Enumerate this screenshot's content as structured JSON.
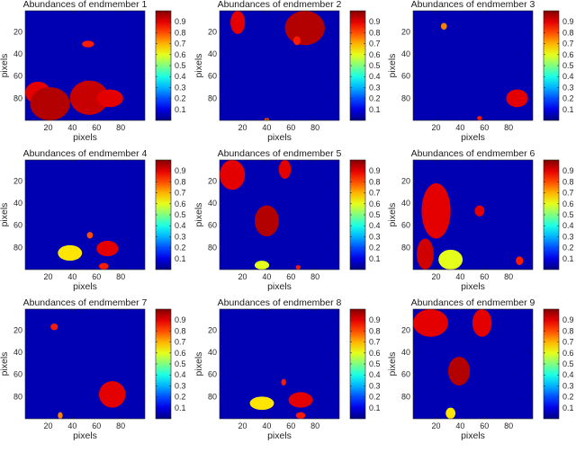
{
  "figure": {
    "rows": 3,
    "cols": 3
  },
  "chart_data": [
    {
      "type": "heatmap",
      "title": "Abundances of endmember 1",
      "xlabel": "pixels",
      "ylabel": "pixels",
      "xlim": [
        1,
        100
      ],
      "ylim": [
        1,
        100
      ],
      "xticks": [
        20,
        40,
        60,
        80
      ],
      "yticks": [
        20,
        40,
        60,
        80
      ],
      "xtick_labels": [
        "20",
        "40",
        "60",
        "80"
      ],
      "ytick_labels": [
        "20",
        "40",
        "60",
        "80"
      ],
      "colorbar": {
        "colormap": "jet",
        "ticks": [
          0.1,
          0.2,
          0.3,
          0.4,
          0.5,
          0.6,
          0.7,
          0.8,
          0.9
        ],
        "tick_labels": [
          "0.1",
          "0.2",
          "0.3",
          "0.4",
          "0.5",
          "0.6",
          "0.7",
          "0.8",
          "0.9"
        ]
      },
      "background_value": 0.05,
      "regions": [
        {
          "x": [
            1,
            22
          ],
          "y": [
            65,
            85
          ],
          "value": 0.9
        },
        {
          "x": [
            5,
            38
          ],
          "y": [
            70,
            100
          ],
          "value": 0.95
        },
        {
          "x": [
            38,
            70
          ],
          "y": [
            64,
            95
          ],
          "value": 0.93
        },
        {
          "x": [
            60,
            82
          ],
          "y": [
            72,
            88
          ],
          "value": 0.9
        },
        {
          "x": [
            48,
            58
          ],
          "y": [
            28,
            34
          ],
          "value": 0.85
        }
      ]
    },
    {
      "type": "heatmap",
      "title": "Abundances of endmember 2",
      "xlabel": "pixels",
      "ylabel": "pixels",
      "xlim": [
        1,
        100
      ],
      "ylim": [
        1,
        100
      ],
      "xticks": [
        20,
        40,
        60,
        80
      ],
      "yticks": [
        20,
        40,
        60,
        80
      ],
      "xtick_labels": [
        "20",
        "40",
        "60",
        "80"
      ],
      "ytick_labels": [
        "20",
        "40",
        "60",
        "80"
      ],
      "colorbar": {
        "colormap": "jet",
        "ticks": [
          0.1,
          0.2,
          0.3,
          0.4,
          0.5,
          0.6,
          0.7,
          0.8,
          0.9
        ],
        "tick_labels": [
          "0.1",
          "0.2",
          "0.3",
          "0.4",
          "0.5",
          "0.6",
          "0.7",
          "0.8",
          "0.9"
        ]
      },
      "background_value": 0.05,
      "regions": [
        {
          "x": [
            55,
            88
          ],
          "y": [
            1,
            32
          ],
          "value": 0.95
        },
        {
          "x": [
            10,
            22
          ],
          "y": [
            1,
            22
          ],
          "value": 0.9
        },
        {
          "x": [
            62,
            68
          ],
          "y": [
            24,
            32
          ],
          "value": 0.85
        },
        {
          "x": [
            38,
            42
          ],
          "y": [
            98,
            100
          ],
          "value": 0.8
        }
      ]
    },
    {
      "type": "heatmap",
      "title": "Abundances of endmember 3",
      "xlabel": "pixels",
      "ylabel": "pixels",
      "xlim": [
        1,
        100
      ],
      "ylim": [
        1,
        100
      ],
      "xticks": [
        20,
        40,
        60,
        80
      ],
      "yticks": [
        20,
        40,
        60,
        80
      ],
      "xtick_labels": [
        "20",
        "40",
        "60",
        "80"
      ],
      "ytick_labels": [
        "20",
        "40",
        "60",
        "80"
      ],
      "colorbar": {
        "colormap": "jet",
        "ticks": [
          0.1,
          0.2,
          0.3,
          0.4,
          0.5,
          0.6,
          0.7,
          0.8,
          0.9
        ],
        "tick_labels": [
          "0.1",
          "0.2",
          "0.3",
          "0.4",
          "0.5",
          "0.6",
          "0.7",
          "0.8",
          "0.9"
        ]
      },
      "background_value": 0.05,
      "regions": [
        {
          "x": [
            78,
            96
          ],
          "y": [
            72,
            88
          ],
          "value": 0.9
        },
        {
          "x": [
            24,
            29
          ],
          "y": [
            12,
            18
          ],
          "value": 0.75
        },
        {
          "x": [
            54,
            58
          ],
          "y": [
            96,
            100
          ],
          "value": 0.85
        }
      ]
    },
    {
      "type": "heatmap",
      "title": "Abundances of endmember 4",
      "xlabel": "pixels",
      "ylabel": "pixels",
      "xlim": [
        1,
        100
      ],
      "ylim": [
        1,
        100
      ],
      "xticks": [
        20,
        40,
        60,
        80
      ],
      "yticks": [
        20,
        40,
        60,
        80
      ],
      "xtick_labels": [
        "20",
        "40",
        "60",
        "80"
      ],
      "ytick_labels": [
        "20",
        "40",
        "60",
        "80"
      ],
      "colorbar": {
        "colormap": "jet",
        "ticks": [
          0.1,
          0.2,
          0.3,
          0.4,
          0.5,
          0.6,
          0.7,
          0.8,
          0.9
        ],
        "tick_labels": [
          "0.1",
          "0.2",
          "0.3",
          "0.4",
          "0.5",
          "0.6",
          "0.7",
          "0.8",
          "0.9"
        ]
      },
      "background_value": 0.05,
      "regions": [
        {
          "x": [
            28,
            48
          ],
          "y": [
            78,
            92
          ],
          "value": 0.65
        },
        {
          "x": [
            60,
            78
          ],
          "y": [
            74,
            88
          ],
          "value": 0.9
        },
        {
          "x": [
            52,
            57
          ],
          "y": [
            66,
            72
          ],
          "value": 0.8
        },
        {
          "x": [
            62,
            70
          ],
          "y": [
            94,
            100
          ],
          "value": 0.85
        }
      ]
    },
    {
      "type": "heatmap",
      "title": "Abundances of endmember 5",
      "xlabel": "pixels",
      "ylabel": "pixels",
      "xlim": [
        1,
        100
      ],
      "ylim": [
        1,
        100
      ],
      "xticks": [
        20,
        40,
        60,
        80
      ],
      "yticks": [
        20,
        40,
        60,
        80
      ],
      "xtick_labels": [
        "20",
        "40",
        "60",
        "80"
      ],
      "ytick_labels": [
        "20",
        "40",
        "60",
        "80"
      ],
      "colorbar": {
        "colormap": "jet",
        "ticks": [
          0.1,
          0.2,
          0.3,
          0.4,
          0.5,
          0.6,
          0.7,
          0.8,
          0.9
        ],
        "tick_labels": [
          "0.1",
          "0.2",
          "0.3",
          "0.4",
          "0.5",
          "0.6",
          "0.7",
          "0.8",
          "0.9"
        ]
      },
      "background_value": 0.05,
      "regions": [
        {
          "x": [
            1,
            22
          ],
          "y": [
            1,
            28
          ],
          "value": 0.9
        },
        {
          "x": [
            50,
            60
          ],
          "y": [
            1,
            18
          ],
          "value": 0.9
        },
        {
          "x": [
            30,
            50
          ],
          "y": [
            42,
            70
          ],
          "value": 0.95
        },
        {
          "x": [
            30,
            42
          ],
          "y": [
            92,
            100
          ],
          "value": 0.6
        },
        {
          "x": [
            64,
            68
          ],
          "y": [
            96,
            100
          ],
          "value": 0.85
        }
      ]
    },
    {
      "type": "heatmap",
      "title": "Abundances of endmember 6",
      "xlabel": "pixels",
      "ylabel": "pixels",
      "xlim": [
        1,
        100
      ],
      "ylim": [
        1,
        100
      ],
      "xticks": [
        20,
        40,
        60,
        80
      ],
      "yticks": [
        20,
        40,
        60,
        80
      ],
      "xtick_labels": [
        "20",
        "40",
        "60",
        "80"
      ],
      "ytick_labels": [
        "20",
        "40",
        "60",
        "80"
      ],
      "colorbar": {
        "colormap": "jet",
        "ticks": [
          0.1,
          0.2,
          0.3,
          0.4,
          0.5,
          0.6,
          0.7,
          0.8,
          0.9
        ],
        "tick_labels": [
          "0.1",
          "0.2",
          "0.3",
          "0.4",
          "0.5",
          "0.6",
          "0.7",
          "0.8",
          "0.9"
        ]
      },
      "background_value": 0.05,
      "regions": [
        {
          "x": [
            8,
            32
          ],
          "y": [
            22,
            72
          ],
          "value": 0.9
        },
        {
          "x": [
            4,
            18
          ],
          "y": [
            72,
            100
          ],
          "value": 0.92
        },
        {
          "x": [
            22,
            42
          ],
          "y": [
            82,
            100
          ],
          "value": 0.6
        },
        {
          "x": [
            52,
            60
          ],
          "y": [
            42,
            52
          ],
          "value": 0.9
        },
        {
          "x": [
            86,
            92
          ],
          "y": [
            88,
            96
          ],
          "value": 0.85
        }
      ]
    },
    {
      "type": "heatmap",
      "title": "Abundances of endmember 7",
      "xlabel": "pixels",
      "ylabel": "pixels",
      "xlim": [
        1,
        100
      ],
      "ylim": [
        1,
        100
      ],
      "xticks": [
        20,
        40,
        60,
        80
      ],
      "yticks": [
        20,
        40,
        60,
        80
      ],
      "xtick_labels": [
        "20",
        "40",
        "60",
        "80"
      ],
      "ytick_labels": [
        "20",
        "40",
        "60",
        "80"
      ],
      "colorbar": {
        "colormap": "jet",
        "ticks": [
          0.1,
          0.2,
          0.3,
          0.4,
          0.5,
          0.6,
          0.7,
          0.8,
          0.9
        ],
        "tick_labels": [
          "0.1",
          "0.2",
          "0.3",
          "0.4",
          "0.5",
          "0.6",
          "0.7",
          "0.8",
          "0.9"
        ]
      },
      "background_value": 0.05,
      "regions": [
        {
          "x": [
            62,
            84
          ],
          "y": [
            66,
            90
          ],
          "value": 0.9
        },
        {
          "x": [
            22,
            28
          ],
          "y": [
            14,
            20
          ],
          "value": 0.85
        },
        {
          "x": [
            28,
            32
          ],
          "y": [
            94,
            100
          ],
          "value": 0.75
        }
      ]
    },
    {
      "type": "heatmap",
      "title": "Abundances of endmember 8",
      "xlabel": "pixels",
      "ylabel": "pixels",
      "xlim": [
        1,
        100
      ],
      "ylim": [
        1,
        100
      ],
      "xticks": [
        20,
        40,
        60,
        80
      ],
      "yticks": [
        20,
        40,
        60,
        80
      ],
      "xtick_labels": [
        "20",
        "40",
        "60",
        "80"
      ],
      "ytick_labels": [
        "20",
        "40",
        "60",
        "80"
      ],
      "colorbar": {
        "colormap": "jet",
        "ticks": [
          0.1,
          0.2,
          0.3,
          0.4,
          0.5,
          0.6,
          0.7,
          0.8,
          0.9
        ],
        "tick_labels": [
          "0.1",
          "0.2",
          "0.3",
          "0.4",
          "0.5",
          "0.6",
          "0.7",
          "0.8",
          "0.9"
        ]
      },
      "background_value": 0.05,
      "regions": [
        {
          "x": [
            26,
            46
          ],
          "y": [
            80,
            92
          ],
          "value": 0.65
        },
        {
          "x": [
            58,
            78
          ],
          "y": [
            76,
            90
          ],
          "value": 0.9
        },
        {
          "x": [
            52,
            56
          ],
          "y": [
            64,
            70
          ],
          "value": 0.85
        },
        {
          "x": [
            64,
            72
          ],
          "y": [
            94,
            100
          ],
          "value": 0.85
        }
      ]
    },
    {
      "type": "heatmap",
      "title": "Abundances of endmember 9",
      "xlabel": "pixels",
      "ylabel": "pixels",
      "xlim": [
        1,
        100
      ],
      "ylim": [
        1,
        100
      ],
      "xticks": [
        20,
        40,
        60,
        80
      ],
      "yticks": [
        20,
        40,
        60,
        80
      ],
      "xtick_labels": [
        "20",
        "40",
        "60",
        "80"
      ],
      "ytick_labels": [
        "20",
        "40",
        "60",
        "80"
      ],
      "colorbar": {
        "colormap": "jet",
        "ticks": [
          0.1,
          0.2,
          0.3,
          0.4,
          0.5,
          0.6,
          0.7,
          0.8,
          0.9
        ],
        "tick_labels": [
          "0.1",
          "0.2",
          "0.3",
          "0.4",
          "0.5",
          "0.6",
          "0.7",
          "0.8",
          "0.9"
        ]
      },
      "background_value": 0.05,
      "regions": [
        {
          "x": [
            1,
            30
          ],
          "y": [
            1,
            26
          ],
          "value": 0.9
        },
        {
          "x": [
            50,
            66
          ],
          "y": [
            1,
            26
          ],
          "value": 0.9
        },
        {
          "x": [
            30,
            48
          ],
          "y": [
            44,
            70
          ],
          "value": 0.95
        },
        {
          "x": [
            28,
            36
          ],
          "y": [
            90,
            100
          ],
          "value": 0.65
        }
      ]
    }
  ]
}
